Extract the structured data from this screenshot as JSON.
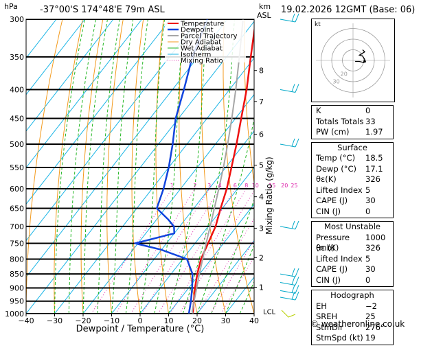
{
  "header": {
    "location": "-37°00'S  174°48'E  79m  ASL",
    "datetime": "19.02.2026  12GMT  (Base: 06)"
  },
  "chart_data": {
    "type": "skew-t",
    "title": "-37°00'S  174°48'E  79m  ASL",
    "xlabel": "Dewpoint / Temperature (°C)",
    "ylabel_left": "hPa",
    "ylabel_right_top": "km",
    "ylabel_right_bottom": "ASL",
    "mixing_ratio_label": "Mixing Ratio (g/kg)",
    "xlim": [
      -40,
      40
    ],
    "x_ticks": [
      -40,
      -30,
      -20,
      -10,
      0,
      10,
      20,
      30,
      40
    ],
    "x_tick_labels": [
      "−40",
      "−30",
      "−20",
      "−10",
      "0",
      "10",
      "20",
      "30",
      "40"
    ],
    "ylim": [
      1000,
      300
    ],
    "pressure_levels": [
      300,
      350,
      400,
      450,
      500,
      550,
      600,
      650,
      700,
      750,
      800,
      850,
      900,
      950,
      1000
    ],
    "altitude_km": [
      {
        "label": "8",
        "p": 370
      },
      {
        "label": "7",
        "p": 420
      },
      {
        "label": "6",
        "p": 480
      },
      {
        "label": "5",
        "p": 545
      },
      {
        "label": "4",
        "p": 620
      },
      {
        "label": "3",
        "p": 705
      },
      {
        "label": "2",
        "p": 795
      },
      {
        "label": "1",
        "p": 898
      },
      {
        "label": "LCL",
        "p": 990
      }
    ],
    "mixing_ratio_values": [
      1,
      2,
      3,
      4,
      6,
      8,
      10,
      15,
      20,
      25
    ],
    "mixing_ratio_tick_labels": [
      "1",
      "2",
      "3",
      "4",
      "6",
      "8",
      "10",
      "15",
      "20",
      "25"
    ],
    "legend": [
      "Temperature",
      "Dewpoint",
      "Parcel Trajectory",
      "Dry Adiabat",
      "Wet Adiabat",
      "Isotherm",
      "Mixing Ratio"
    ],
    "legend_position": "top-right",
    "series": [
      {
        "name": "Temperature",
        "color": "#ee1111",
        "points": [
          [
            1000,
            18.5
          ],
          [
            950,
            15.4
          ],
          [
            900,
            12.2
          ],
          [
            850,
            9.2
          ],
          [
            800,
            6.4
          ],
          [
            750,
            4.6
          ],
          [
            700,
            2.6
          ],
          [
            650,
            -0.6
          ],
          [
            600,
            -3.8
          ],
          [
            550,
            -8
          ],
          [
            500,
            -12.6
          ],
          [
            450,
            -18
          ],
          [
            400,
            -24
          ],
          [
            350,
            -31.5
          ],
          [
            300,
            -40
          ]
        ]
      },
      {
        "name": "Dewpoint",
        "color": "#1144dd",
        "points": [
          [
            1000,
            17.1
          ],
          [
            950,
            14.4
          ],
          [
            900,
            11.2
          ],
          [
            850,
            7.5
          ],
          [
            800,
            1.5
          ],
          [
            770,
            -10
          ],
          [
            750,
            -21
          ],
          [
            720,
            -10
          ],
          [
            700,
            -12
          ],
          [
            680,
            -16
          ],
          [
            650,
            -23
          ],
          [
            600,
            -26
          ],
          [
            550,
            -30
          ],
          [
            500,
            -35
          ],
          [
            450,
            -41
          ],
          [
            400,
            -46
          ],
          [
            350,
            -52
          ],
          [
            300,
            -57
          ]
        ]
      },
      {
        "name": "Parcel Trajectory",
        "color": "#a6a6a6",
        "points": [
          [
            1000,
            18.5
          ],
          [
            990,
            17.6
          ],
          [
            950,
            15.5
          ],
          [
            900,
            12.8
          ],
          [
            850,
            9.9
          ],
          [
            800,
            7
          ],
          [
            750,
            3.9
          ],
          [
            700,
            0.7
          ],
          [
            650,
            -2.8
          ],
          [
            600,
            -6.6
          ],
          [
            550,
            -10.8
          ],
          [
            500,
            -15.7
          ],
          [
            450,
            -21.3
          ],
          [
            400,
            -27.8
          ],
          [
            350,
            -35.5
          ],
          [
            300,
            -44.5
          ]
        ]
      }
    ],
    "wind_barb_color": "#00a8c8"
  },
  "hodograph": {
    "label": "kt",
    "ring_labels": [
      "20",
      "30"
    ],
    "trace_points_kt": [
      [
        2,
        -1
      ],
      [
        6,
        -1
      ],
      [
        10,
        -2
      ],
      [
        11,
        1
      ],
      [
        9,
        4
      ],
      [
        6,
        5
      ],
      [
        11,
        8
      ],
      [
        9,
        10
      ]
    ]
  },
  "indices": {
    "general": [
      {
        "label": "K",
        "value": "0"
      },
      {
        "label": "Totals Totals",
        "value": "33"
      },
      {
        "label": "PW (cm)",
        "value": "1.97"
      }
    ],
    "surface": {
      "title": "Surface",
      "rows": [
        {
          "label": "Temp (°C)",
          "value": "18.5"
        },
        {
          "label": "Dewp (°C)",
          "value": "17.1"
        },
        {
          "label": "θε(K)",
          "value": "326"
        },
        {
          "label": "Lifted Index",
          "value": "5"
        },
        {
          "label": "CAPE (J)",
          "value": "30"
        },
        {
          "label": "CIN (J)",
          "value": "0"
        }
      ]
    },
    "most_unstable": {
      "title": "Most Unstable",
      "rows": [
        {
          "label": "Pressure (mb)",
          "value": "1000"
        },
        {
          "label": "θε (K)",
          "value": "326"
        },
        {
          "label": "Lifted Index",
          "value": "5"
        },
        {
          "label": "CAPE (J)",
          "value": "30"
        },
        {
          "label": "CIN (J)",
          "value": "0"
        }
      ]
    },
    "hodograph_block": {
      "title": "Hodograph",
      "rows": [
        {
          "label": "EH",
          "value": "−2"
        },
        {
          "label": "SREH",
          "value": "25"
        },
        {
          "label": "StmDir",
          "value": "276°"
        },
        {
          "label": "StmSpd (kt)",
          "value": "19"
        }
      ]
    }
  },
  "footer": {
    "copyright": "© weatheronline.co.uk"
  }
}
